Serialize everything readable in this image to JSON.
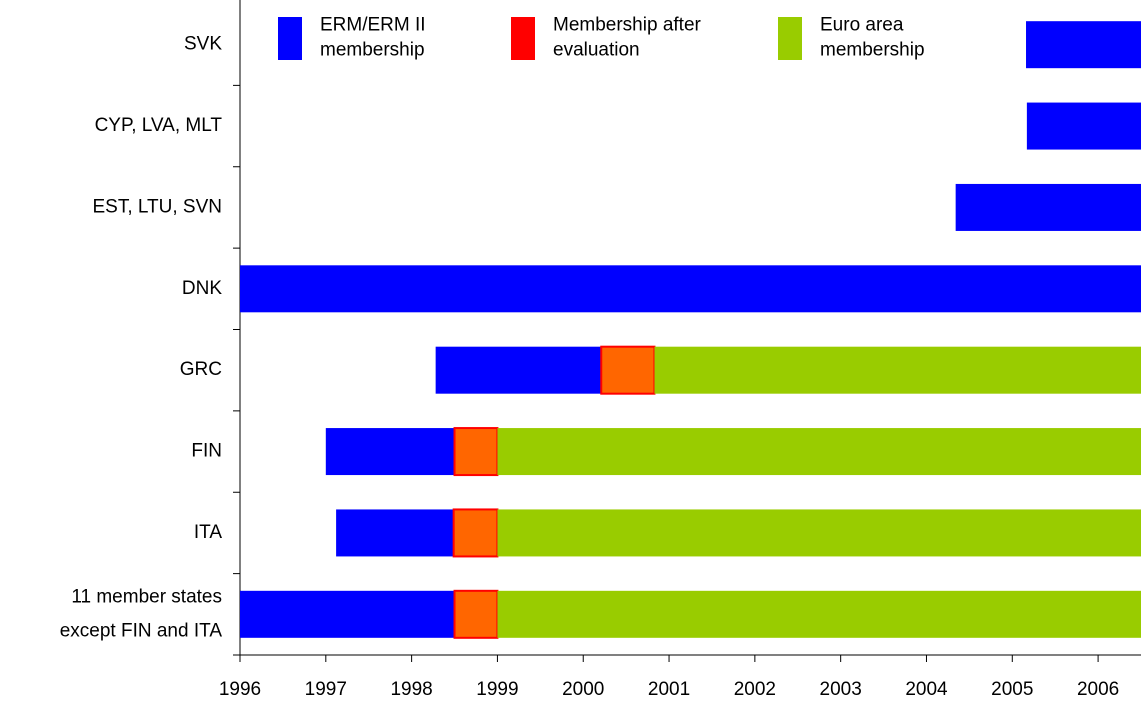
{
  "chart_data": {
    "type": "timeline_bar",
    "categories": [
      "SVK",
      "CYP, LVA, MLT",
      "EST, LTU, SVN",
      "DNK",
      "GRC",
      "FIN",
      "ITA",
      "11 member states\nexcept FIN and ITA"
    ],
    "starts": [
      2005.16,
      2005.17,
      2004.34,
      1996,
      1998.28,
      1997.0,
      1997.12,
      1996
    ],
    "series": [
      {
        "name": "ERM/ERM II\nmembership",
        "color": "#0000ff",
        "values": [
          1.34,
          1.33,
          2.16,
          10.5,
          1.93,
          1.5,
          1.37,
          2.5
        ]
      },
      {
        "name": "Membership after\nevaluation",
        "color": "#ff6600",
        "stroke": "#ff0000",
        "values": [
          null,
          null,
          null,
          null,
          0.62,
          0.5,
          0.51,
          0.5
        ]
      },
      {
        "name": "Euro area\nmembership",
        "color": "#99cc00",
        "values": [
          null,
          null,
          null,
          null,
          5.67,
          7.5,
          7.5,
          7.5
        ]
      }
    ],
    "xlim": [
      1996,
      2006.5
    ],
    "xticks": [
      1996,
      1997,
      1998,
      1999,
      2000,
      2001,
      2002,
      2003,
      2004,
      2005,
      2006
    ]
  }
}
